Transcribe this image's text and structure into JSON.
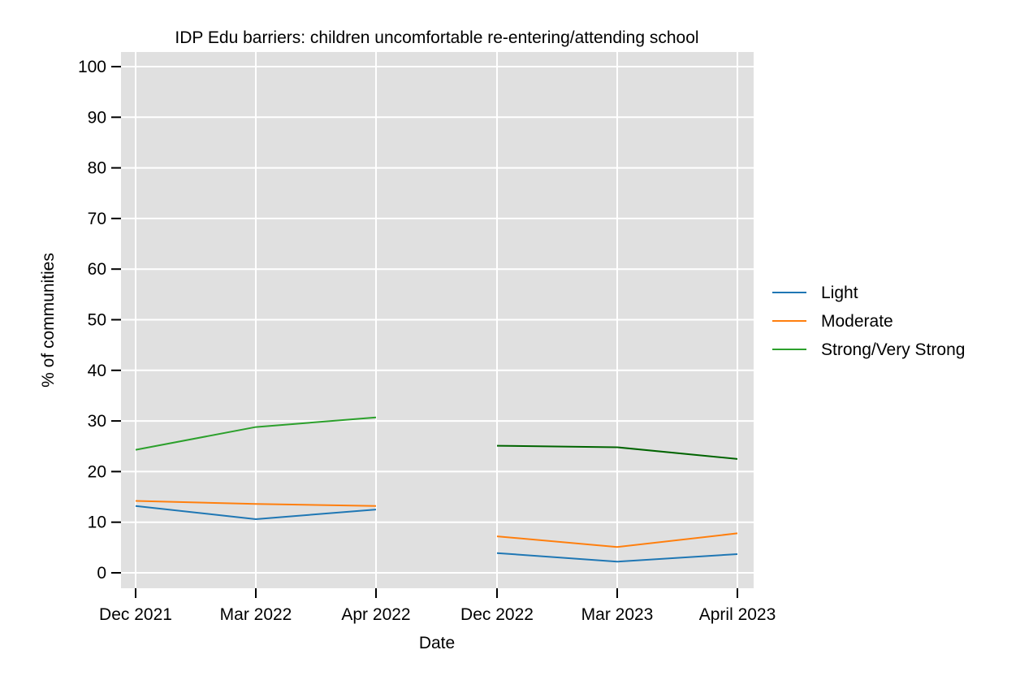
{
  "chart_data": {
    "type": "line",
    "title": "IDP Edu barriers: children uncomfortable re-entering/attending school",
    "xlabel": "Date",
    "ylabel": "% of communities",
    "ylim": [
      0,
      100
    ],
    "yticks": [
      0,
      10,
      20,
      30,
      40,
      50,
      60,
      70,
      80,
      90,
      100
    ],
    "categories": [
      "Dec 2021",
      "Mar 2022",
      "Apr 2022",
      "Dec 2022",
      "Mar 2023",
      "April 2023"
    ],
    "grid": true,
    "legend_position": "right",
    "colors": {
      "background": "#e0e0e0",
      "light": "#1f77b4",
      "moderate": "#ff7f0e",
      "strong": "#2ca02c",
      "strong_2023": "#006400"
    },
    "series": [
      {
        "name": "Light",
        "color": "#1f77b4",
        "segments": [
          {
            "x": [
              "Dec 2021",
              "Mar 2022",
              "Apr 2022"
            ],
            "values": [
              13.2,
              10.6,
              12.5
            ]
          },
          {
            "x": [
              "Dec 2022",
              "Mar 2023",
              "April 2023"
            ],
            "values": [
              3.9,
              2.2,
              3.7
            ]
          }
        ]
      },
      {
        "name": "Moderate",
        "color": "#ff7f0e",
        "segments": [
          {
            "x": [
              "Dec 2021",
              "Mar 2022",
              "Apr 2022"
            ],
            "values": [
              14.2,
              13.6,
              13.2
            ]
          },
          {
            "x": [
              "Dec 2022",
              "Mar 2023",
              "April 2023"
            ],
            "values": [
              7.2,
              5.1,
              7.8
            ]
          }
        ]
      },
      {
        "name": "Strong/Very Strong",
        "color": "#2ca02c",
        "segments": [
          {
            "x": [
              "Dec 2021",
              "Mar 2022",
              "Apr 2022"
            ],
            "values": [
              24.3,
              28.8,
              30.7
            ],
            "color": "#2ca02c"
          },
          {
            "x": [
              "Dec 2022",
              "Mar 2023",
              "April 2023"
            ],
            "values": [
              25.1,
              24.8,
              22.5
            ],
            "color": "#006400"
          }
        ]
      }
    ]
  }
}
